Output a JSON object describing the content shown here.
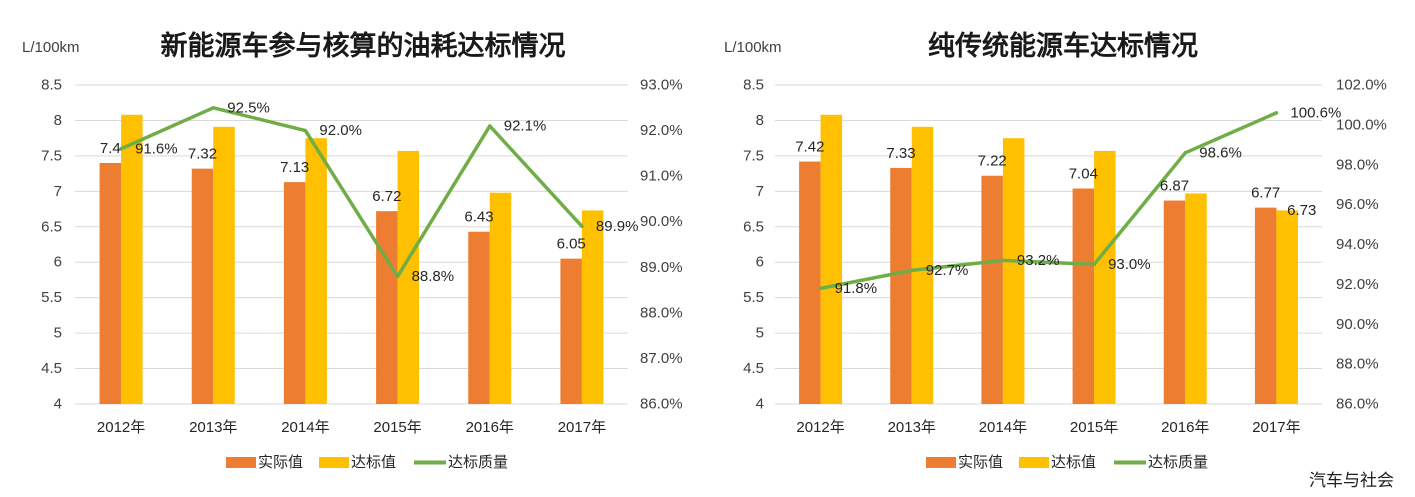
{
  "watermark": "汽车与社会",
  "chart_data": [
    {
      "type": "bar",
      "title": "新能源车参与核算的油耗达标情况",
      "y_unit": "L/100km",
      "categories": [
        "2012年",
        "2013年",
        "2014年",
        "2015年",
        "2016年",
        "2017年"
      ],
      "ylim": [
        4,
        8.5
      ],
      "yticks": [
        8.5,
        8,
        7.5,
        7,
        6.5,
        6,
        5.5,
        5,
        4.5,
        4
      ],
      "ytick_labels": [
        "8.5",
        "8",
        "7.5",
        "7",
        "6.5",
        "6",
        "5.5",
        "5",
        "4.5",
        "4"
      ],
      "y2lim": [
        86,
        93
      ],
      "y2ticks": [
        93,
        92,
        91,
        90,
        89,
        88,
        87,
        86
      ],
      "y2tick_labels": [
        "93.0%",
        "92.0%",
        "91.0%",
        "90.0%",
        "89.0%",
        "88.0%",
        "87.0%",
        "86.0%"
      ],
      "grid": true,
      "legend_position": "bottom",
      "series": [
        {
          "name": "实际值",
          "type": "bar",
          "axis": "left",
          "color": "#ED7D31",
          "values": [
            7.4,
            7.32,
            7.13,
            6.72,
            6.43,
            6.05
          ],
          "labels": [
            "7.4",
            "7.32",
            "7.13",
            "6.72",
            "6.43",
            "6.05"
          ]
        },
        {
          "name": "达标值",
          "type": "bar",
          "axis": "left",
          "color": "#FFC000",
          "values": [
            8.08,
            7.91,
            7.75,
            7.57,
            6.98,
            6.73
          ],
          "labels": [
            null,
            null,
            null,
            null,
            null,
            null
          ]
        },
        {
          "name": "达标质量",
          "type": "line",
          "axis": "right",
          "color": "#70AD47",
          "values": [
            91.6,
            92.5,
            92.0,
            88.8,
            92.1,
            89.9
          ],
          "labels": [
            "91.6%",
            "92.5%",
            "92.0%",
            "88.8%",
            "92.1%",
            "89.9%"
          ]
        }
      ]
    },
    {
      "type": "bar",
      "title": "纯传统能源车达标情况",
      "y_unit": "L/100km",
      "categories": [
        "2012年",
        "2013年",
        "2014年",
        "2015年",
        "2016年",
        "2017年"
      ],
      "ylim": [
        4,
        8.5
      ],
      "yticks": [
        8.5,
        8,
        7.5,
        7,
        6.5,
        6,
        5.5,
        5,
        4.5,
        4
      ],
      "ytick_labels": [
        "8.5",
        "8",
        "7.5",
        "7",
        "6.5",
        "6",
        "5.5",
        "5",
        "4.5",
        "4"
      ],
      "y2lim": [
        86,
        102
      ],
      "y2ticks": [
        102,
        100,
        98,
        96,
        94,
        92,
        90,
        88,
        86
      ],
      "y2tick_labels": [
        "102.0%",
        "100.0%",
        "98.0%",
        "96.0%",
        "94.0%",
        "92.0%",
        "90.0%",
        "88.0%",
        "86.0%"
      ],
      "grid": true,
      "legend_position": "bottom",
      "series": [
        {
          "name": "实际值",
          "type": "bar",
          "axis": "left",
          "color": "#ED7D31",
          "values": [
            7.42,
            7.33,
            7.22,
            7.04,
            6.87,
            6.77
          ],
          "labels": [
            "7.42",
            "7.33",
            "7.22",
            "7.04",
            "6.87",
            "6.77"
          ]
        },
        {
          "name": "达标值",
          "type": "bar",
          "axis": "left",
          "color": "#FFC000",
          "values": [
            8.08,
            7.91,
            7.75,
            7.57,
            6.97,
            6.73
          ],
          "labels": [
            null,
            null,
            null,
            null,
            null,
            "6.73"
          ]
        },
        {
          "name": "达标质量",
          "type": "line",
          "axis": "right",
          "color": "#70AD47",
          "values": [
            91.8,
            92.7,
            93.2,
            93.0,
            98.6,
            100.6
          ],
          "labels": [
            "91.8%",
            "92.7%",
            "93.2%",
            "93.0%",
            "98.6%",
            "100.6%"
          ]
        }
      ]
    }
  ]
}
